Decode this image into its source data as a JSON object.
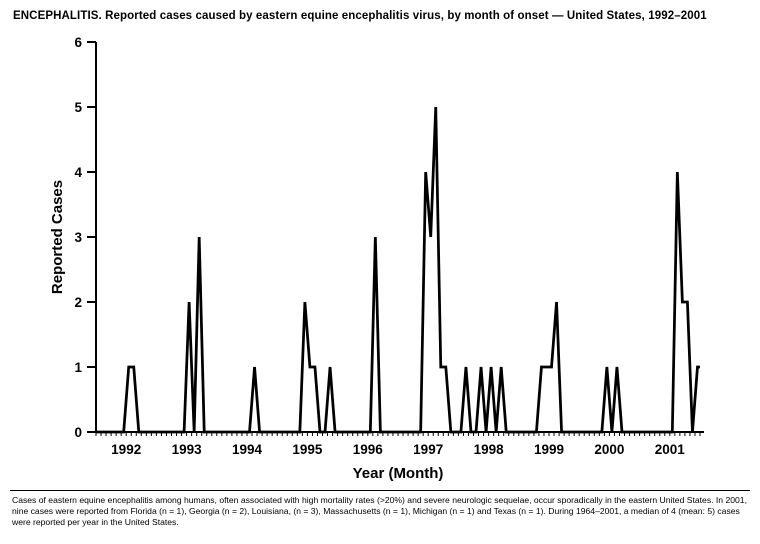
{
  "page": {
    "title": "ENCEPHALITIS. Reported cases caused by eastern equine encephalitis virus, by month of onset — United States, 1992–2001",
    "footnote": "Cases of eastern equine encephalitis among humans, often associated with high mortality rates (>20%) and severe neurologic sequelae, occur sporadically in the eastern United States. In 2001, nine cases were reported from Florida (n = 1), Georgia (n = 2), Louisiana, (n = 3), Massachusetts (n = 1), Michigan (n = 1) and Texas (n = 1). During 1964–2001, a median of 4 (mean: 5) cases were reported per year in the United States."
  },
  "chart_data": {
    "type": "line",
    "title": "ENCEPHALITIS. Reported cases caused by eastern equine encephalitis virus, by month of onset — United States, 1992–2001",
    "xlabel": "Year (Month)",
    "ylabel": "Reported Cases",
    "ylim": [
      0,
      6
    ],
    "yticks": [
      0,
      1,
      2,
      3,
      4,
      5,
      6
    ],
    "grid": false,
    "legend": "none",
    "line_color": "#000000",
    "x_unit": "month",
    "x_start": "1992-01",
    "years": [
      1992,
      1993,
      1994,
      1995,
      1996,
      1997,
      1998,
      1999,
      2000,
      2001
    ],
    "series": [
      {
        "name": "Reported cases",
        "monthly_values": [
          0,
          0,
          0,
          0,
          0,
          0,
          1,
          1,
          0,
          0,
          0,
          0,
          0,
          0,
          0,
          0,
          0,
          0,
          2,
          0,
          3,
          0,
          0,
          0,
          0,
          0,
          0,
          0,
          0,
          0,
          0,
          1,
          0,
          0,
          0,
          0,
          0,
          0,
          0,
          0,
          0,
          2,
          1,
          1,
          0,
          0,
          1,
          0,
          0,
          0,
          0,
          0,
          0,
          0,
          0,
          3,
          0,
          0,
          0,
          0,
          0,
          0,
          0,
          0,
          0,
          4,
          3,
          5,
          1,
          1,
          0,
          0,
          0,
          1,
          0,
          0,
          1,
          0,
          1,
          0,
          1,
          0,
          0,
          0,
          0,
          0,
          0,
          0,
          1,
          1,
          1,
          2,
          0,
          0,
          0,
          0,
          0,
          0,
          0,
          0,
          0,
          1,
          0,
          1,
          0,
          0,
          0,
          0,
          0,
          0,
          0,
          0,
          0,
          0,
          0,
          4,
          2,
          2,
          0,
          1
        ]
      }
    ]
  }
}
